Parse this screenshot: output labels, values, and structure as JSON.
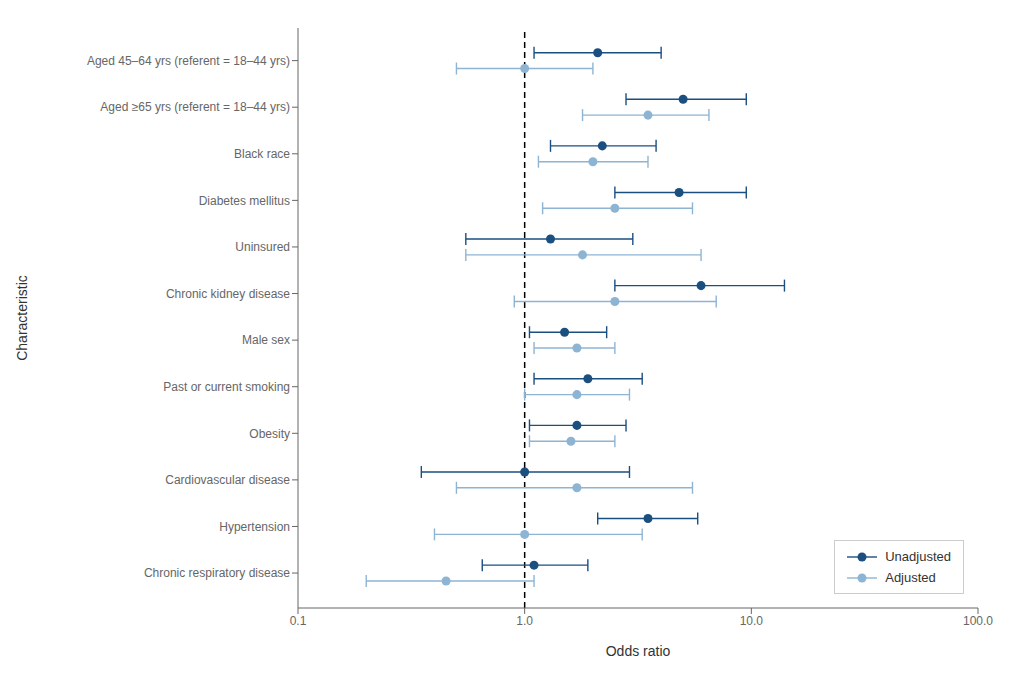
{
  "chart_data": {
    "type": "scatter",
    "categories": [
      "Aged 45–64 yrs (referent = 18–44 yrs)",
      "Aged ≥65 yrs (referent = 18–44 yrs)",
      "Black race",
      "Diabetes mellitus",
      "Uninsured",
      "Chronic kidney disease",
      "Male sex",
      "Past or current smoking",
      "Obesity",
      "Cardiovascular disease",
      "Hypertension",
      "Chronic respiratory disease"
    ],
    "series": [
      {
        "name": "Unadjusted",
        "color": "#1a4f80",
        "values": [
          2.1,
          5.0,
          2.2,
          4.8,
          1.3,
          6.0,
          1.5,
          1.9,
          1.7,
          1.0,
          3.5,
          1.1
        ],
        "ci_low": [
          1.1,
          2.8,
          1.3,
          2.5,
          0.55,
          2.5,
          1.05,
          1.1,
          1.05,
          0.35,
          2.1,
          0.65
        ],
        "ci_high": [
          4.0,
          9.5,
          3.8,
          9.5,
          3.0,
          14.0,
          2.3,
          3.3,
          2.8,
          2.9,
          5.8,
          1.9
        ]
      },
      {
        "name": "Adjusted",
        "color": "#8eb4d4",
        "values": [
          1.0,
          3.5,
          2.0,
          2.5,
          1.8,
          2.5,
          1.7,
          1.7,
          1.6,
          1.7,
          1.0,
          0.45
        ],
        "ci_low": [
          0.5,
          1.8,
          1.15,
          1.2,
          0.55,
          0.9,
          1.1,
          1.0,
          1.05,
          0.5,
          0.4,
          0.2
        ],
        "ci_high": [
          2.0,
          6.5,
          3.5,
          5.5,
          6.0,
          7.0,
          2.5,
          2.9,
          2.5,
          5.5,
          3.3,
          1.1
        ]
      }
    ],
    "xlim": [
      0.1,
      100
    ],
    "xticks": [
      0.1,
      {
        "value": 1,
        "label": "1.0"
      },
      {
        "value": 10,
        "label": "10.0"
      },
      {
        "value": 100,
        "label": "100.0"
      }
    ],
    "xlabel": "Odds ratio",
    "ylabel": "Characteristic",
    "log": "x",
    "vline": 1,
    "grid": false,
    "legend": "lower right"
  }
}
